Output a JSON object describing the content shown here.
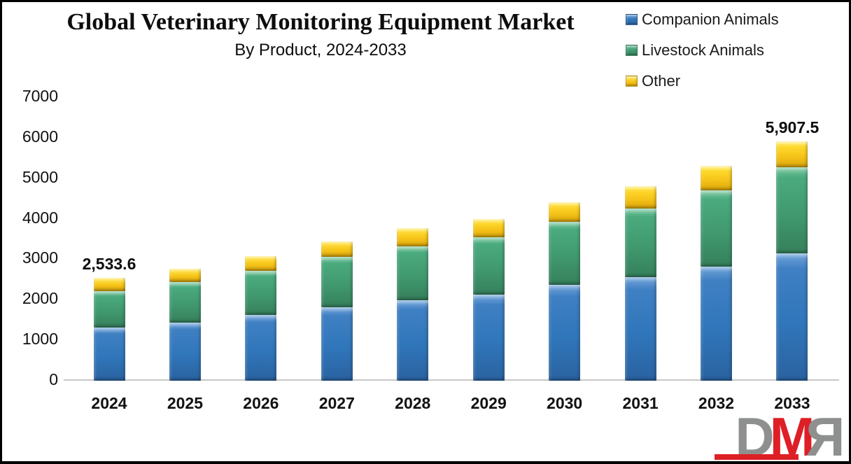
{
  "header": {
    "title": "Global Veterinary Monitoring Equipment Market",
    "subtitle": "By Product, 2024-2033"
  },
  "legend": [
    {
      "label": "Companion Animals",
      "color": "#3076ba"
    },
    {
      "label": "Livestock Animals",
      "color": "#41996f"
    },
    {
      "label": "Other",
      "color": "#f7c51a"
    }
  ],
  "chart_data": {
    "type": "bar",
    "stacked": true,
    "title": "Global Veterinary Monitoring Equipment Market",
    "subtitle": "By Product, 2024-2033",
    "x": [
      "2024",
      "2025",
      "2026",
      "2027",
      "2028",
      "2029",
      "2030",
      "2031",
      "2032",
      "2033"
    ],
    "series": [
      {
        "name": "Companion Animals",
        "css": "companion",
        "color": "#3076ba",
        "values": [
          1310,
          1440,
          1620,
          1810,
          1990,
          2130,
          2360,
          2550,
          2820,
          3140
        ]
      },
      {
        "name": "Livestock Animals",
        "css": "livestock",
        "color": "#41996f",
        "values": [
          910,
          990,
          1090,
          1250,
          1330,
          1420,
          1570,
          1710,
          1890,
          2130
        ]
      },
      {
        "name": "Other",
        "css": "other",
        "color": "#f7c51a",
        "values": [
          313.6,
          330,
          370,
          380,
          440,
          450,
          470,
          540,
          590,
          637.5
        ]
      }
    ],
    "totals": [
      2533.6,
      2760,
      3080,
      3440,
      3760,
      4000,
      4400,
      4800,
      5300,
      5907.5
    ],
    "bar_labels": [
      {
        "year": "2024",
        "text": "2,533.6"
      },
      {
        "year": "2033",
        "text": "5,907.5"
      }
    ],
    "ylim": [
      0,
      7000
    ],
    "yticks": [
      0,
      1000,
      2000,
      3000,
      4000,
      5000,
      6000,
      7000
    ],
    "grid": false,
    "legend_position": "top-right"
  },
  "logo": {
    "d": "D",
    "m": "M",
    "r": "R"
  }
}
